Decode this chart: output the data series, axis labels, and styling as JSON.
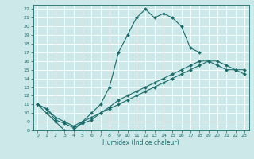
{
  "title": "",
  "xlabel": "Humidex (Indice chaleur)",
  "ylabel": "",
  "bg_color": "#cce8e8",
  "grid_color": "#ffffff",
  "line_color": "#1a6b6b",
  "xlim": [
    -0.5,
    23.5
  ],
  "ylim": [
    8,
    22.5
  ],
  "xticks": [
    0,
    1,
    2,
    3,
    4,
    5,
    6,
    7,
    8,
    9,
    10,
    11,
    12,
    13,
    14,
    15,
    16,
    17,
    18,
    19,
    20,
    21,
    22,
    23
  ],
  "yticks": [
    8,
    9,
    10,
    11,
    12,
    13,
    14,
    15,
    16,
    17,
    18,
    19,
    20,
    21,
    22
  ],
  "lines": [
    {
      "x": [
        0,
        1,
        2,
        3,
        4,
        5,
        6,
        7,
        8,
        9,
        10,
        11,
        12,
        13,
        14,
        15,
        16,
        17,
        18
      ],
      "y": [
        11,
        10,
        9,
        8,
        8,
        9,
        10,
        11,
        13,
        17,
        19,
        21,
        22,
        21,
        21.5,
        21,
        20,
        17.5,
        17
      ]
    },
    {
      "x": [
        0,
        1,
        2,
        3,
        4,
        5,
        6,
        7,
        8,
        9,
        10,
        11,
        12,
        13,
        14,
        15,
        16,
        17,
        18,
        19,
        20,
        21,
        22,
        23
      ],
      "y": [
        11,
        10.5,
        9.5,
        9,
        8.5,
        9,
        9.5,
        10,
        10.5,
        11,
        11.5,
        12,
        12.5,
        13,
        13.5,
        14,
        14.5,
        15,
        15.5,
        16,
        16,
        15.5,
        15,
        15
      ]
    },
    {
      "x": [
        0,
        1,
        2,
        3,
        4,
        5,
        6,
        7,
        8,
        9,
        10,
        11,
        12,
        13,
        14,
        15,
        16,
        17,
        18,
        19,
        20,
        21,
        22,
        23
      ],
      "y": [
        11,
        10.5,
        9.2,
        8.8,
        8.3,
        8.8,
        9.2,
        10,
        10.7,
        11.5,
        12,
        12.5,
        13,
        13.5,
        14,
        14.5,
        15,
        15.5,
        16,
        16,
        15.5,
        15,
        15,
        14.5
      ]
    }
  ]
}
